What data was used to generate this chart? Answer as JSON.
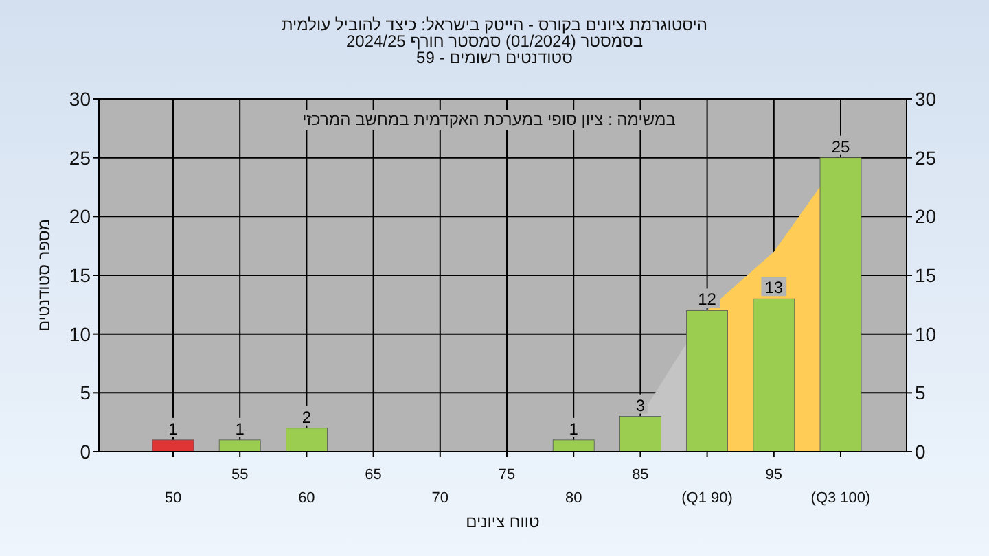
{
  "chart_data": {
    "type": "bar",
    "title": "היסטוגרמת ציונים בקורס - הייטק בישראל: כיצד להוביל עולמית\nבסמסטר  (01/2024)  סמסטר חורף 2024/25\nסטודנטים רשומים - 59",
    "xlabel": "טווח ציונים",
    "ylabel": "מספר סטודנטים",
    "annotations": [
      "במשימה : ציון סופי במערכת האקדמית במחשב המרכזי"
    ],
    "categories": [
      "50",
      "55",
      "60",
      "65",
      "70",
      "75",
      "80",
      "85",
      "(Q1 90)",
      "95",
      "(Q3 100)"
    ],
    "series": [
      {
        "type": "area",
        "color": "#c4c4c4",
        "values": [
          null,
          null,
          null,
          null,
          null,
          null,
          null,
          3,
          12,
          null,
          null
        ]
      },
      {
        "type": "area",
        "color": "#ffcc55",
        "values": [
          null,
          null,
          null,
          null,
          null,
          null,
          null,
          null,
          12,
          17,
          25
        ]
      },
      {
        "colors": [
          "#e03535",
          "#9acd50",
          "#9acd50",
          "#9acd50",
          "#9acd50",
          "#9acd50",
          "#9acd50",
          "#9acd50",
          "#9acd50",
          "#9acd50",
          "#9acd50"
        ],
        "values": [
          1,
          1,
          2,
          0,
          0,
          0,
          1,
          3,
          12,
          13,
          25
        ],
        "value_labels": [
          "1",
          "1",
          "2",
          null,
          null,
          null,
          "1",
          "3",
          "12",
          "13",
          "25"
        ]
      }
    ],
    "ylim": [
      0,
      30
    ],
    "yticks": [
      0,
      5,
      10,
      15,
      20,
      25,
      30
    ],
    "y2lim": [
      0,
      30
    ],
    "y2ticks": [
      0,
      5,
      10,
      15,
      20,
      25,
      30
    ],
    "grid": true
  }
}
